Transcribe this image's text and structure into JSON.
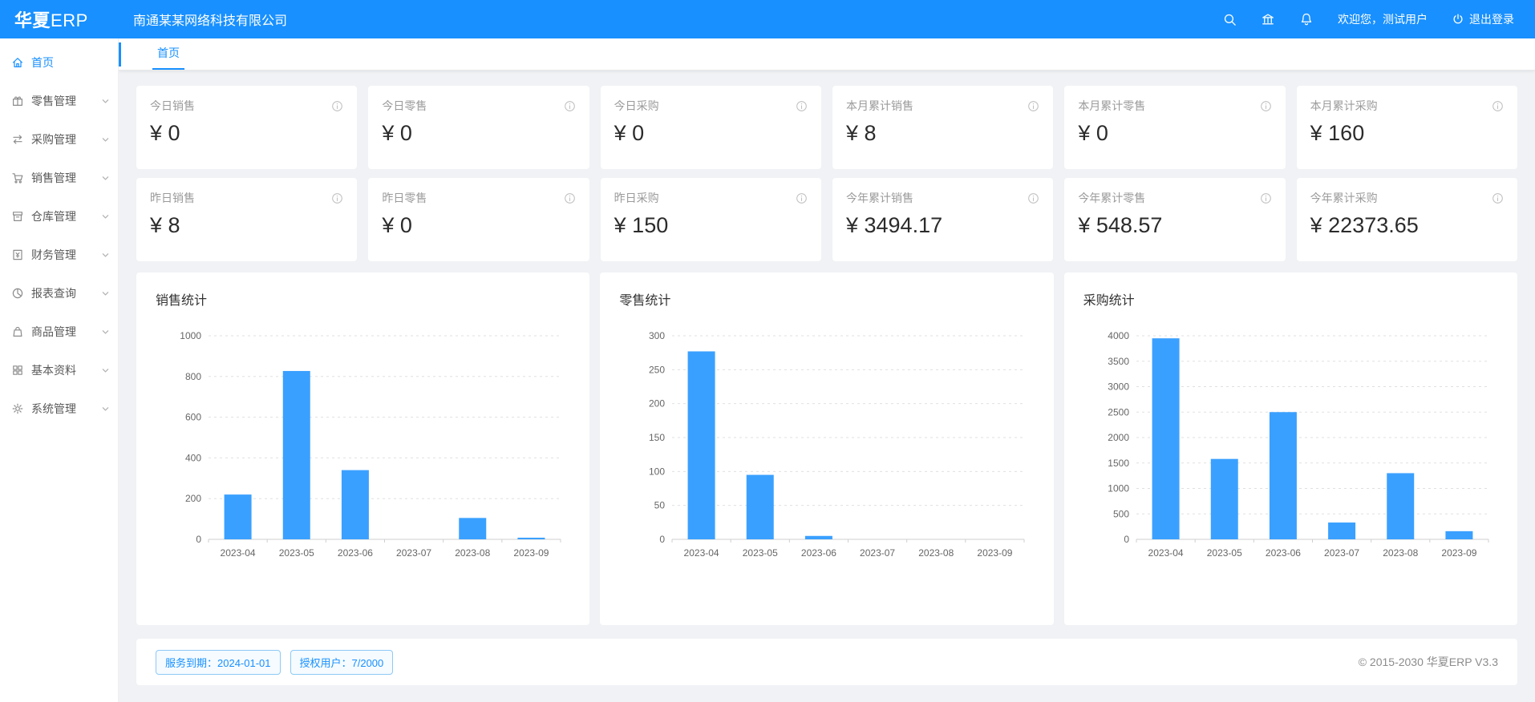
{
  "colors": {
    "header_bg": "#1890ff",
    "accent": "#1890ff",
    "bar_color": "#3aa0ff"
  },
  "header": {
    "logo_cn": "华夏",
    "logo_en": "ERP",
    "company": "南通某某网络科技有限公司",
    "icons": [
      "search-icon",
      "bank-icon",
      "bell-icon"
    ],
    "welcome": "欢迎您，测试用户",
    "logout_label": "退出登录"
  },
  "sidebar": {
    "items": [
      {
        "key": "home",
        "label": "首页",
        "icon": "home-icon",
        "active": true,
        "has_submenu": false
      },
      {
        "key": "retail",
        "label": "零售管理",
        "icon": "gift-icon",
        "active": false,
        "has_submenu": true
      },
      {
        "key": "purchase",
        "label": "采购管理",
        "icon": "swap-icon",
        "active": false,
        "has_submenu": true
      },
      {
        "key": "sales",
        "label": "销售管理",
        "icon": "cart-icon",
        "active": false,
        "has_submenu": true
      },
      {
        "key": "warehouse",
        "label": "仓库管理",
        "icon": "warehouse-icon",
        "active": false,
        "has_submenu": true
      },
      {
        "key": "finance",
        "label": "财务管理",
        "icon": "finance-icon",
        "active": false,
        "has_submenu": true
      },
      {
        "key": "report",
        "label": "报表查询",
        "icon": "pie-chart-icon",
        "active": false,
        "has_submenu": true
      },
      {
        "key": "goods",
        "label": "商品管理",
        "icon": "bag-icon",
        "active": false,
        "has_submenu": true
      },
      {
        "key": "basic",
        "label": "基本资料",
        "icon": "grid-icon",
        "active": false,
        "has_submenu": true
      },
      {
        "key": "system",
        "label": "系统管理",
        "icon": "gear-icon",
        "active": false,
        "has_submenu": true
      }
    ]
  },
  "tabs": {
    "items": [
      {
        "label": "首页",
        "active": true
      }
    ]
  },
  "stats": {
    "rows": [
      [
        {
          "label": "今日销售",
          "value": "¥ 0"
        },
        {
          "label": "今日零售",
          "value": "¥ 0"
        },
        {
          "label": "今日采购",
          "value": "¥ 0"
        },
        {
          "label": "本月累计销售",
          "value": "¥ 8"
        },
        {
          "label": "本月累计零售",
          "value": "¥ 0"
        },
        {
          "label": "本月累计采购",
          "value": "¥ 160"
        }
      ],
      [
        {
          "label": "昨日销售",
          "value": "¥ 8"
        },
        {
          "label": "昨日零售",
          "value": "¥ 0"
        },
        {
          "label": "昨日采购",
          "value": "¥ 150"
        },
        {
          "label": "今年累计销售",
          "value": "¥ 3494.17"
        },
        {
          "label": "今年累计零售",
          "value": "¥ 548.57"
        },
        {
          "label": "今年累计采购",
          "value": "¥ 22373.65"
        }
      ]
    ]
  },
  "chart_data": [
    {
      "key": "sales",
      "type": "bar",
      "title": "销售统计",
      "categories": [
        "2023-04",
        "2023-05",
        "2023-06",
        "2023-07",
        "2023-08",
        "2023-09"
      ],
      "values": [
        220,
        827,
        340,
        0,
        105,
        8
      ],
      "xlabel": "",
      "ylabel": "",
      "ylim": [
        0,
        1000
      ],
      "ytick_step": 200,
      "grid": "dashed",
      "legend": "none",
      "bar_color": "#3aa0ff"
    },
    {
      "key": "retail",
      "type": "bar",
      "title": "零售统计",
      "categories": [
        "2023-04",
        "2023-05",
        "2023-06",
        "2023-07",
        "2023-08",
        "2023-09"
      ],
      "values": [
        277,
        95,
        5,
        0,
        0,
        0
      ],
      "xlabel": "",
      "ylabel": "",
      "ylim": [
        0,
        300
      ],
      "ytick_step": 50,
      "grid": "dashed",
      "legend": "none",
      "bar_color": "#3aa0ff"
    },
    {
      "key": "purchase",
      "type": "bar",
      "title": "采购统计",
      "categories": [
        "2023-04",
        "2023-05",
        "2023-06",
        "2023-07",
        "2023-08",
        "2023-09"
      ],
      "values": [
        3950,
        1580,
        2500,
        330,
        1300,
        160
      ],
      "xlabel": "",
      "ylabel": "",
      "ylim": [
        0,
        4000
      ],
      "ytick_step": 500,
      "grid": "dashed",
      "legend": "none",
      "bar_color": "#3aa0ff"
    }
  ],
  "footer": {
    "badges": [
      "服务到期：2024-01-01",
      "授权用户：7/2000"
    ],
    "copyright": "© 2015-2030 华夏ERP V3.3"
  }
}
